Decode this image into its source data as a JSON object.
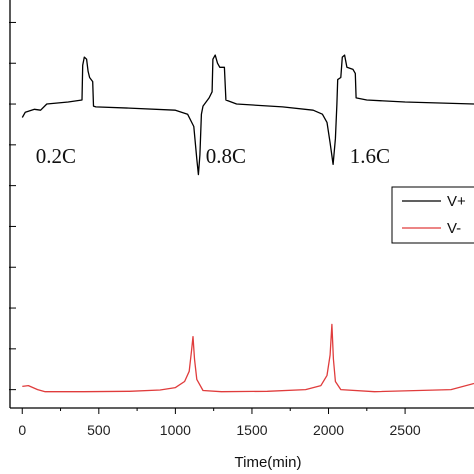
{
  "chart_data": {
    "type": "line",
    "xlabel": "Time(min)",
    "xlim": [
      -80,
      2950
    ],
    "ylim": [
      0,
      10
    ],
    "x_ticks": [
      0,
      500,
      1000,
      1500,
      2000,
      2500
    ],
    "annotations": [
      {
        "text": "0.2C",
        "x": 220,
        "y": 6.0
      },
      {
        "text": "0.8C",
        "x": 1330,
        "y": 6.0
      },
      {
        "text": "1.6C",
        "x": 2270,
        "y": 6.0
      }
    ],
    "legend": {
      "placement": "right",
      "entries": [
        "V+",
        "V-"
      ]
    },
    "series": [
      {
        "name": "V+",
        "color": "#000000",
        "points": [
          [
            0,
            7.12
          ],
          [
            20,
            7.25
          ],
          [
            80,
            7.32
          ],
          [
            120,
            7.3
          ],
          [
            160,
            7.45
          ],
          [
            300,
            7.5
          ],
          [
            390,
            7.55
          ],
          [
            395,
            8.4
          ],
          [
            405,
            8.6
          ],
          [
            420,
            8.55
          ],
          [
            430,
            8.25
          ],
          [
            440,
            8.1
          ],
          [
            450,
            8.05
          ],
          [
            460,
            8.0
          ],
          [
            465,
            7.4
          ],
          [
            480,
            7.38
          ],
          [
            700,
            7.35
          ],
          [
            1000,
            7.3
          ],
          [
            1080,
            7.2
          ],
          [
            1120,
            6.9
          ],
          [
            1140,
            6.1
          ],
          [
            1150,
            5.72
          ],
          [
            1160,
            6.2
          ],
          [
            1170,
            7.2
          ],
          [
            1180,
            7.4
          ],
          [
            1220,
            7.6
          ],
          [
            1240,
            7.75
          ],
          [
            1245,
            8.55
          ],
          [
            1260,
            8.65
          ],
          [
            1275,
            8.45
          ],
          [
            1290,
            8.35
          ],
          [
            1320,
            8.35
          ],
          [
            1330,
            7.55
          ],
          [
            1400,
            7.45
          ],
          [
            1700,
            7.38
          ],
          [
            1900,
            7.3
          ],
          [
            1960,
            7.2
          ],
          [
            1990,
            7.0
          ],
          [
            2010,
            6.5
          ],
          [
            2030,
            5.97
          ],
          [
            2045,
            6.6
          ],
          [
            2055,
            7.45
          ],
          [
            2060,
            8.05
          ],
          [
            2080,
            8.1
          ],
          [
            2090,
            8.6
          ],
          [
            2105,
            8.65
          ],
          [
            2120,
            8.35
          ],
          [
            2160,
            8.3
          ],
          [
            2175,
            8.2
          ],
          [
            2180,
            7.6
          ],
          [
            2250,
            7.55
          ],
          [
            2500,
            7.5
          ],
          [
            2950,
            7.45
          ]
        ]
      },
      {
        "name": "V-",
        "color": "#e03c3c",
        "points": [
          [
            0,
            0.53
          ],
          [
            40,
            0.55
          ],
          [
            100,
            0.45
          ],
          [
            150,
            0.4
          ],
          [
            400,
            0.4
          ],
          [
            700,
            0.41
          ],
          [
            900,
            0.44
          ],
          [
            1000,
            0.5
          ],
          [
            1060,
            0.65
          ],
          [
            1090,
            0.9
          ],
          [
            1105,
            1.4
          ],
          [
            1115,
            1.75
          ],
          [
            1125,
            1.2
          ],
          [
            1140,
            0.7
          ],
          [
            1180,
            0.43
          ],
          [
            1300,
            0.4
          ],
          [
            1600,
            0.41
          ],
          [
            1850,
            0.45
          ],
          [
            1950,
            0.55
          ],
          [
            1990,
            0.8
          ],
          [
            2010,
            1.3
          ],
          [
            2022,
            2.05
          ],
          [
            2032,
            1.2
          ],
          [
            2045,
            0.65
          ],
          [
            2080,
            0.45
          ],
          [
            2300,
            0.4
          ],
          [
            2800,
            0.45
          ],
          [
            2950,
            0.6
          ]
        ]
      }
    ]
  }
}
